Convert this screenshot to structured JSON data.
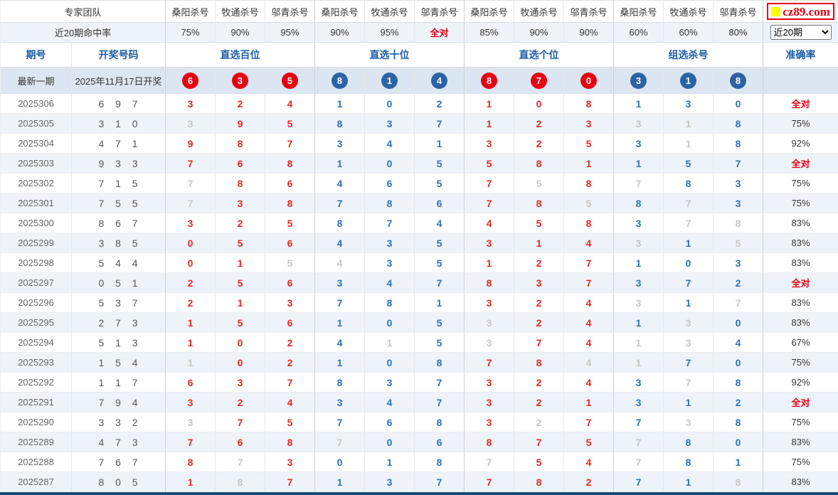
{
  "brand": {
    "logo_text": "cz89.com",
    "logo_color": "#e60012",
    "logo_square_color": "#ffff00"
  },
  "header": {
    "team_label": "专家团队",
    "hit_rate_label": "近20期命中率",
    "experts": [
      "桑阳杀号",
      "牧通杀号",
      "邬青杀号",
      "桑阳杀号",
      "牧通杀号",
      "邬青杀号",
      "桑阳杀号",
      "牧通杀号",
      "邬青杀号",
      "桑阳杀号",
      "牧通杀号",
      "邬青杀号"
    ],
    "hit_rates": [
      "75%",
      "90%",
      "95%",
      "90%",
      "95%",
      "全对",
      "85%",
      "90%",
      "90%",
      "60%",
      "60%",
      "80%"
    ],
    "hit_rate_highlight_index": 5,
    "period_select": {
      "value": "近20期",
      "options": [
        "近20期"
      ]
    }
  },
  "columns": {
    "period": "期号",
    "drawn": "开奖号码",
    "groups": [
      "直选百位",
      "直选十位",
      "直选个位",
      "组选杀号"
    ],
    "accuracy": "准确率"
  },
  "latest": {
    "label": "最新一期",
    "date": "2025年11月17日开奖",
    "numbers": [
      "6r",
      "3r",
      "5r",
      "8b",
      "1b",
      "4b",
      "8r",
      "7r",
      "0r",
      "3b",
      "1b",
      "8b"
    ]
  },
  "legend_note": "cell code suffix: r=red kill number, b=blue kill number, g=gray missed kill",
  "rows": [
    {
      "period": "2025306",
      "drawn": "697",
      "cells": [
        "3r",
        "2r",
        "4r",
        "1b",
        "0b",
        "2b",
        "1r",
        "0r",
        "8r",
        "1b",
        "3b",
        "0b"
      ],
      "accuracy": "全对",
      "highlight": true
    },
    {
      "period": "2025305",
      "drawn": "310",
      "cells": [
        "3g",
        "9r",
        "5r",
        "8b",
        "3b",
        "7b",
        "1r",
        "2r",
        "3r",
        "3g",
        "1g",
        "8b"
      ],
      "accuracy": "75%",
      "highlight": false
    },
    {
      "period": "2025304",
      "drawn": "471",
      "cells": [
        "9r",
        "8r",
        "7r",
        "3b",
        "4b",
        "1b",
        "3r",
        "2r",
        "5r",
        "3b",
        "1g",
        "8b"
      ],
      "accuracy": "92%",
      "highlight": false
    },
    {
      "period": "2025303",
      "drawn": "933",
      "cells": [
        "7r",
        "6r",
        "8r",
        "1b",
        "0b",
        "5b",
        "5r",
        "8r",
        "1r",
        "1b",
        "5b",
        "7b"
      ],
      "accuracy": "全对",
      "highlight": true
    },
    {
      "period": "2025302",
      "drawn": "715",
      "cells": [
        "7g",
        "8r",
        "6r",
        "4b",
        "6b",
        "5b",
        "7r",
        "5g",
        "8r",
        "7g",
        "8b",
        "3b"
      ],
      "accuracy": "75%",
      "highlight": false
    },
    {
      "period": "2025301",
      "drawn": "755",
      "cells": [
        "7g",
        "3r",
        "8r",
        "7b",
        "8b",
        "6b",
        "7r",
        "8r",
        "5g",
        "8b",
        "7g",
        "3b"
      ],
      "accuracy": "75%",
      "highlight": false
    },
    {
      "period": "2025300",
      "drawn": "867",
      "cells": [
        "3r",
        "2r",
        "5r",
        "8b",
        "7b",
        "4b",
        "4r",
        "5r",
        "8r",
        "3b",
        "7g",
        "8g"
      ],
      "accuracy": "83%",
      "highlight": false
    },
    {
      "period": "2025299",
      "drawn": "385",
      "cells": [
        "0r",
        "5r",
        "6r",
        "4b",
        "3b",
        "5b",
        "3r",
        "1r",
        "4r",
        "3g",
        "1b",
        "5g"
      ],
      "accuracy": "83%",
      "highlight": false
    },
    {
      "period": "2025298",
      "drawn": "544",
      "cells": [
        "0r",
        "1r",
        "5g",
        "4g",
        "3b",
        "5b",
        "1r",
        "2r",
        "7r",
        "1b",
        "0b",
        "3b"
      ],
      "accuracy": "83%",
      "highlight": false
    },
    {
      "period": "2025297",
      "drawn": "051",
      "cells": [
        "2r",
        "5r",
        "6r",
        "3b",
        "4b",
        "7b",
        "8r",
        "3r",
        "7r",
        "3b",
        "7b",
        "2b"
      ],
      "accuracy": "全对",
      "highlight": true
    },
    {
      "period": "2025296",
      "drawn": "537",
      "cells": [
        "2r",
        "1r",
        "3r",
        "7b",
        "8b",
        "1b",
        "3r",
        "2r",
        "4r",
        "3g",
        "1b",
        "7g"
      ],
      "accuracy": "83%",
      "highlight": false
    },
    {
      "period": "2025295",
      "drawn": "273",
      "cells": [
        "1r",
        "5r",
        "6r",
        "1b",
        "0b",
        "5b",
        "3g",
        "2r",
        "4r",
        "1b",
        "3g",
        "0b"
      ],
      "accuracy": "83%",
      "highlight": false
    },
    {
      "period": "2025294",
      "drawn": "513",
      "cells": [
        "1r",
        "0r",
        "2r",
        "4b",
        "1g",
        "5b",
        "3g",
        "7r",
        "4r",
        "1g",
        "3g",
        "4b"
      ],
      "accuracy": "67%",
      "highlight": false
    },
    {
      "period": "2025293",
      "drawn": "154",
      "cells": [
        "1g",
        "0r",
        "2r",
        "1b",
        "0b",
        "8b",
        "7r",
        "8r",
        "4g",
        "1g",
        "7b",
        "0b"
      ],
      "accuracy": "75%",
      "highlight": false
    },
    {
      "period": "2025292",
      "drawn": "117",
      "cells": [
        "6r",
        "3r",
        "7r",
        "8b",
        "3b",
        "7b",
        "3r",
        "2r",
        "4r",
        "3b",
        "7g",
        "8b"
      ],
      "accuracy": "92%",
      "highlight": false
    },
    {
      "period": "2025291",
      "drawn": "794",
      "cells": [
        "3r",
        "2r",
        "4r",
        "3b",
        "4b",
        "7b",
        "3r",
        "2r",
        "1r",
        "3b",
        "1b",
        "2b"
      ],
      "accuracy": "全对",
      "highlight": true
    },
    {
      "period": "2025290",
      "drawn": "332",
      "cells": [
        "3g",
        "7r",
        "5r",
        "7b",
        "6b",
        "8b",
        "3r",
        "2g",
        "7r",
        "7b",
        "3g",
        "8b"
      ],
      "accuracy": "75%",
      "highlight": false
    },
    {
      "period": "2025289",
      "drawn": "473",
      "cells": [
        "7r",
        "6r",
        "8r",
        "7g",
        "0b",
        "6b",
        "8r",
        "7r",
        "5r",
        "7g",
        "8b",
        "0b"
      ],
      "accuracy": "83%",
      "highlight": false
    },
    {
      "period": "2025288",
      "drawn": "767",
      "cells": [
        "8r",
        "7g",
        "3r",
        "0b",
        "1b",
        "8b",
        "7g",
        "5r",
        "4r",
        "7g",
        "8b",
        "1b"
      ],
      "accuracy": "75%",
      "highlight": false
    },
    {
      "period": "2025287",
      "drawn": "805",
      "cells": [
        "1r",
        "8g",
        "7r",
        "1b",
        "3b",
        "7b",
        "7r",
        "8r",
        "2r",
        "7b",
        "1b",
        "8g"
      ],
      "accuracy": "83%",
      "highlight": false
    }
  ],
  "colors": {
    "kill_red": "#e22a22",
    "kill_blue": "#2e72b8",
    "miss_gray": "#c6c6c6",
    "header_blue": "#1c5da8",
    "circle_red": "#e60012",
    "circle_blue": "#2b63a5",
    "alt_row_bg": "#eef3f9",
    "latest_row_bg": "#dce6f2",
    "bottom_bar": "#1b4a7a"
  }
}
